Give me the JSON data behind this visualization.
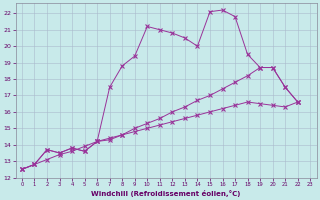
{
  "xlabel": "Windchill (Refroidissement éolien,°C)",
  "background_color": "#c8eaea",
  "grid_color": "#aabbcc",
  "line_color": "#993399",
  "xlim": [
    -0.5,
    23.5
  ],
  "ylim": [
    12,
    22.6
  ],
  "xticks": [
    0,
    1,
    2,
    3,
    4,
    5,
    6,
    7,
    8,
    9,
    10,
    11,
    12,
    13,
    14,
    15,
    16,
    17,
    18,
    19,
    20,
    21,
    22,
    23
  ],
  "yticks": [
    12,
    13,
    14,
    15,
    16,
    17,
    18,
    19,
    20,
    21,
    22
  ],
  "line1_x": [
    0,
    1,
    2,
    3,
    4,
    5,
    6,
    7,
    8,
    9,
    10,
    11,
    12,
    13,
    14,
    15,
    16,
    17,
    18,
    19,
    20,
    21,
    22
  ],
  "line1_y": [
    12.5,
    12.8,
    13.7,
    13.5,
    13.8,
    13.6,
    14.2,
    17.5,
    18.8,
    19.4,
    21.2,
    21.0,
    20.8,
    20.5,
    20.0,
    22.1,
    22.2,
    21.8,
    19.5,
    18.7,
    18.7,
    17.5,
    16.6
  ],
  "line2_x": [
    0,
    1,
    2,
    3,
    4,
    5,
    6,
    7,
    8,
    9,
    10,
    11,
    12,
    13,
    14,
    15,
    16,
    17,
    18,
    19,
    20,
    21,
    22
  ],
  "line2_y": [
    12.5,
    12.8,
    13.7,
    13.5,
    13.8,
    13.6,
    14.2,
    14.3,
    14.6,
    15.0,
    15.3,
    15.6,
    16.0,
    16.3,
    16.7,
    17.0,
    17.4,
    17.8,
    18.2,
    18.7,
    18.7,
    17.5,
    16.6
  ],
  "line3_x": [
    0,
    1,
    2,
    3,
    4,
    5,
    6,
    7,
    8,
    9,
    10,
    11,
    12,
    13,
    14,
    15,
    16,
    17,
    18,
    19,
    20,
    21,
    22
  ],
  "line3_y": [
    12.5,
    12.8,
    13.1,
    13.4,
    13.6,
    13.9,
    14.2,
    14.4,
    14.6,
    14.8,
    15.0,
    15.2,
    15.4,
    15.6,
    15.8,
    16.0,
    16.2,
    16.4,
    16.6,
    16.5,
    16.4,
    16.3,
    16.6
  ]
}
